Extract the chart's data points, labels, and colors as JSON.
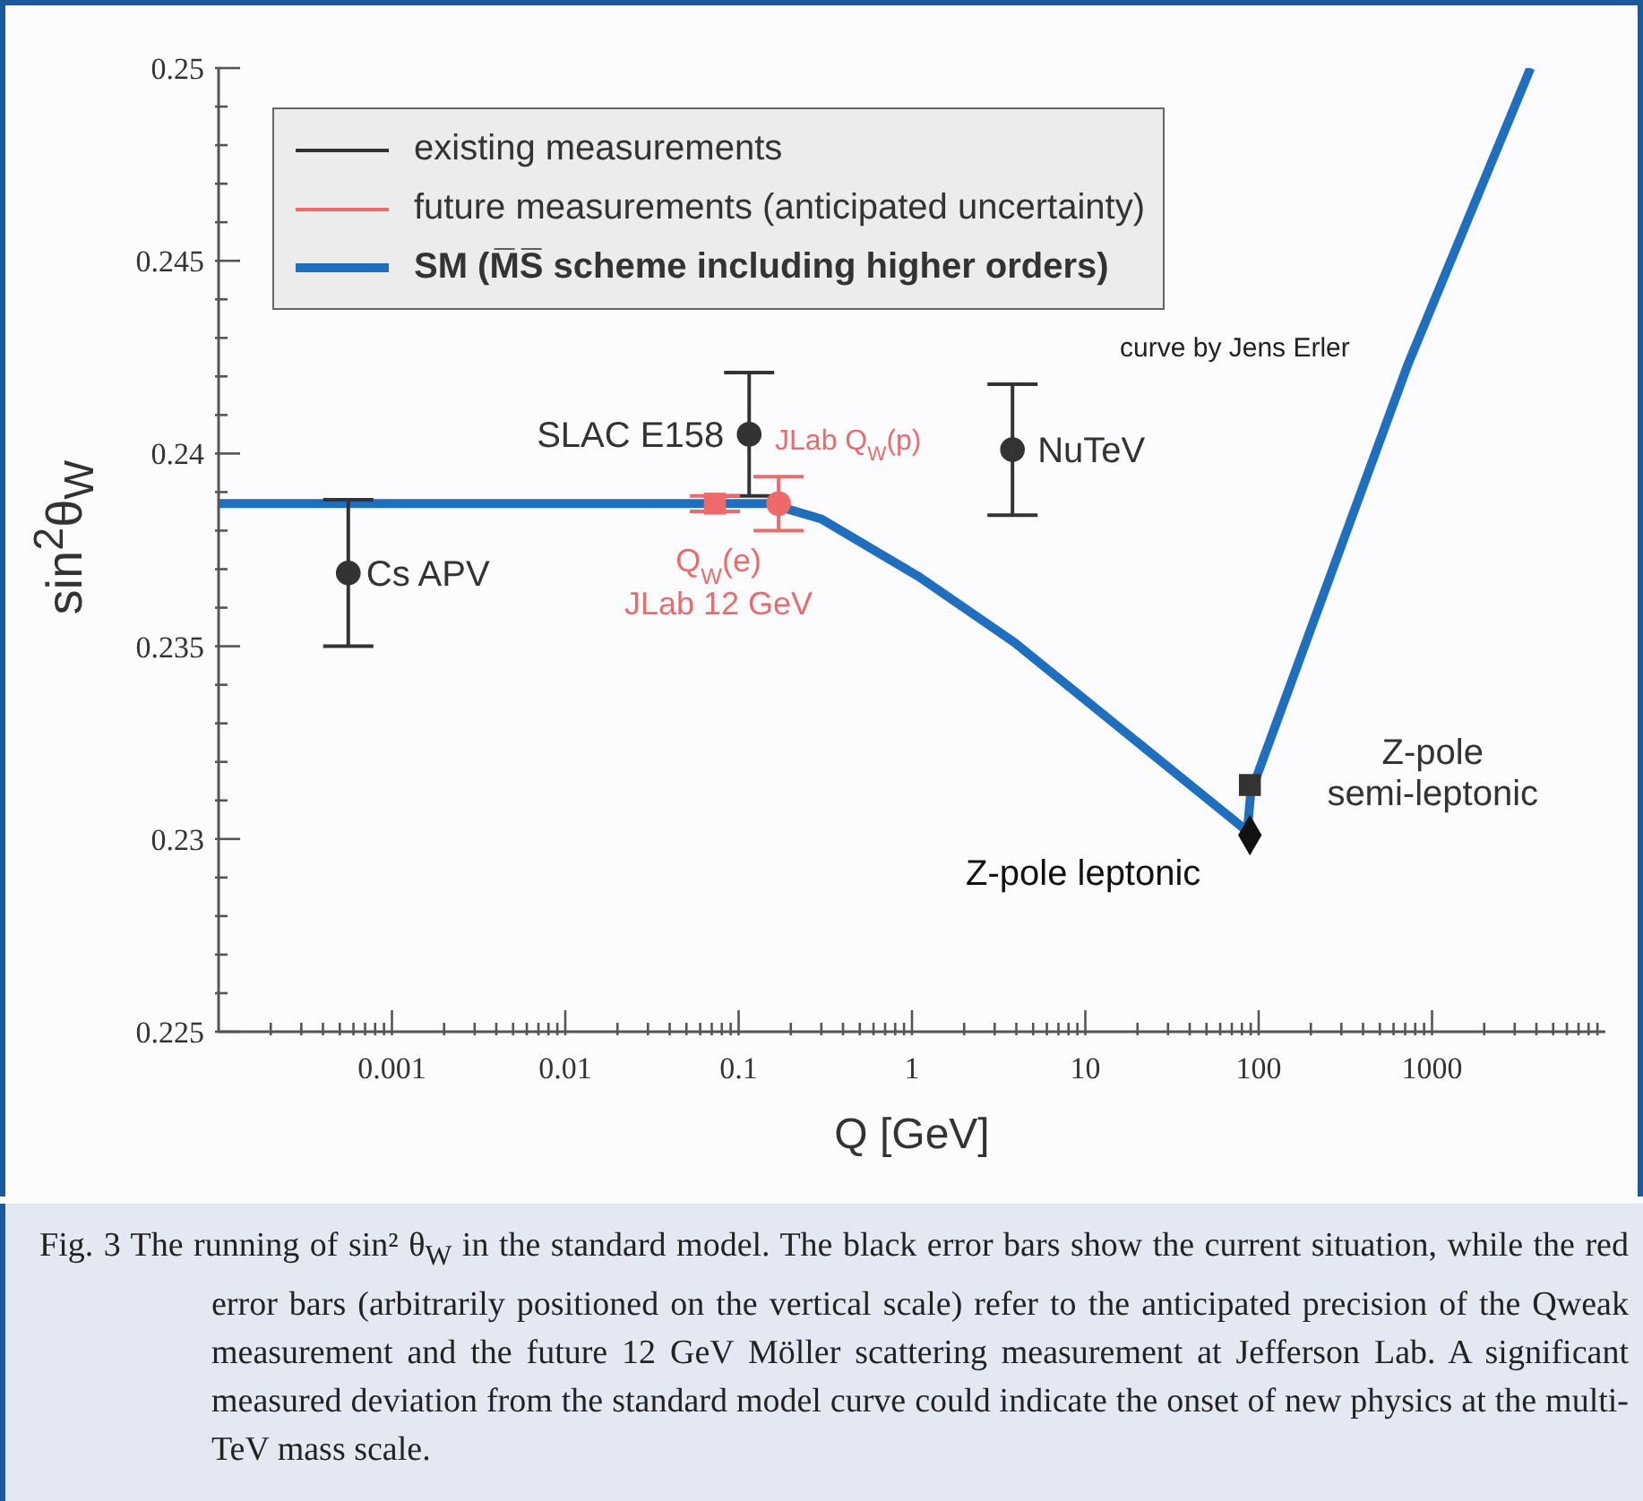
{
  "chart_data": {
    "type": "scatter",
    "xlabel": "Q [GeV]",
    "ylabel": "sin$^{2}$θ$_{W}$",
    "log": "x",
    "xlim": [
      0.0001,
      10000
    ],
    "ylim": [
      0.225,
      0.25
    ],
    "xticks": [
      {
        "value": 0.0002,
        "label": null
      },
      {
        "value": 0.0003,
        "label": null
      },
      {
        "value": 0.0004,
        "label": null
      },
      {
        "value": 0.0005,
        "label": null
      },
      {
        "value": 0.0006,
        "label": null
      },
      {
        "value": 0.0007,
        "label": null
      },
      {
        "value": 0.0008,
        "label": null
      },
      {
        "value": 0.0009,
        "label": null
      },
      0.001,
      {
        "value": 0.002,
        "label": null
      },
      {
        "value": 0.003,
        "label": null
      },
      {
        "value": 0.004,
        "label": null
      },
      {
        "value": 0.005,
        "label": null
      },
      {
        "value": 0.006,
        "label": null
      },
      {
        "value": 0.007,
        "label": null
      },
      {
        "value": 0.008,
        "label": null
      },
      {
        "value": 0.009,
        "label": null
      },
      0.01,
      {
        "value": 0.02,
        "label": null
      },
      {
        "value": 0.03,
        "label": null
      },
      {
        "value": 0.04,
        "label": null
      },
      {
        "value": 0.05,
        "label": null
      },
      {
        "value": 0.06,
        "label": null
      },
      {
        "value": 0.07,
        "label": null
      },
      {
        "value": 0.08,
        "label": null
      },
      {
        "value": 0.09,
        "label": null
      },
      0.1,
      {
        "value": 0.2,
        "label": null
      },
      {
        "value": 0.3,
        "label": null
      },
      {
        "value": 0.4,
        "label": null
      },
      {
        "value": 0.5,
        "label": null
      },
      {
        "value": 0.6,
        "label": null
      },
      {
        "value": 0.7,
        "label": null
      },
      {
        "value": 0.8,
        "label": null
      },
      {
        "value": 0.9,
        "label": null
      },
      1,
      {
        "value": 2,
        "label": null
      },
      {
        "value": 3,
        "label": null
      },
      {
        "value": 4,
        "label": null
      },
      {
        "value": 5,
        "label": null
      },
      {
        "value": 6,
        "label": null
      },
      {
        "value": 7,
        "label": null
      },
      {
        "value": 8,
        "label": null
      },
      {
        "value": 9,
        "label": null
      },
      10,
      {
        "value": 20,
        "label": null
      },
      {
        "value": 30,
        "label": null
      },
      {
        "value": 40,
        "label": null
      },
      {
        "value": 50,
        "label": null
      },
      {
        "value": 60,
        "label": null
      },
      {
        "value": 70,
        "label": null
      },
      {
        "value": 80,
        "label": null
      },
      {
        "value": 90,
        "label": null
      },
      100,
      {
        "value": 200,
        "label": null
      },
      {
        "value": 300,
        "label": null
      },
      {
        "value": 400,
        "label": null
      },
      {
        "value": 500,
        "label": null
      },
      {
        "value": 600,
        "label": null
      },
      {
        "value": 700,
        "label": null
      },
      {
        "value": 800,
        "label": null
      },
      {
        "value": 900,
        "label": null
      },
      1000,
      {
        "value": 2000,
        "label": null
      },
      {
        "value": 3000,
        "label": null
      },
      {
        "value": 4000,
        "label": null
      },
      {
        "value": 5000,
        "label": null
      },
      {
        "value": 6000,
        "label": null
      },
      {
        "value": 7000,
        "label": null
      },
      {
        "value": 8000,
        "label": null
      },
      {
        "value": 9000,
        "label": null
      }
    ],
    "yticks": [
      0.225,
      {
        "value": 0.226,
        "label": null
      },
      {
        "value": 0.227,
        "label": null
      },
      {
        "value": 0.228,
        "label": null
      },
      {
        "value": 0.229,
        "label": null
      },
      0.23,
      {
        "value": 0.231,
        "label": null
      },
      {
        "value": 0.232,
        "label": null
      },
      {
        "value": 0.233,
        "label": null
      },
      {
        "value": 0.234,
        "label": null
      },
      0.235,
      {
        "value": 0.236,
        "label": null
      },
      {
        "value": 0.237,
        "label": null
      },
      {
        "value": 0.238,
        "label": null
      },
      {
        "value": 0.239,
        "label": null
      },
      0.24,
      {
        "value": 0.241,
        "label": null
      },
      {
        "value": 0.242,
        "label": null
      },
      {
        "value": 0.243,
        "label": null
      },
      {
        "value": 0.244,
        "label": null
      },
      0.245,
      {
        "value": 0.246,
        "label": null
      },
      {
        "value": 0.247,
        "label": null
      },
      {
        "value": 0.248,
        "label": null
      },
      {
        "value": 0.249,
        "label": null
      },
      0.25
    ],
    "legend": "top left",
    "series": [
      {
        "name": "existing measurements",
        "color": "#333333",
        "marker": "circle",
        "x": [
          0.00056,
          0.115,
          3.8
        ],
        "values": [
          0.2369,
          0.2405,
          0.2401
        ],
        "errors": [
          0.0019,
          0.0016,
          0.0017
        ]
      },
      {
        "name": "future measurements (anticipated uncertainty)",
        "color": "#ee6a6a",
        "marker": "circle",
        "x": [
          0.17
        ],
        "values": [
          0.2387
        ],
        "errors": [
          0.0007
        ]
      },
      {
        "color": "#ee6a6a",
        "marker": "square",
        "x": [
          0.073
        ],
        "values": [
          0.2387
        ],
        "errors": [
          0.0002
        ]
      },
      {
        "name": "SM (M̅S̅ scheme including higher orders)",
        "type": "line",
        "color": "#1f6fc0",
        "marker": "none",
        "x": [
          0.0001,
          0.15,
          0.3,
          1.1,
          3.9,
          86,
          90,
          724,
          3700
        ],
        "values": [
          0.2387,
          0.2387,
          0.2383,
          0.2368,
          0.2351,
          0.2302,
          0.2312,
          0.2423,
          0.25
        ]
      },
      {
        "color": "#333333",
        "marker": "square",
        "x": [
          89
        ],
        "values": [
          0.2314
        ]
      },
      {
        "color": "#111111",
        "marker": "diamond",
        "x": [
          89
        ],
        "values": [
          0.2301
        ]
      }
    ],
    "annotations": [
      {
        "text": "Cs APV",
        "x": 0.00056,
        "y": 0.2369
      },
      {
        "text": "SLAC E158",
        "x": 0.115,
        "y": 0.2405
      },
      {
        "text": "NuTeV",
        "x": 3.8,
        "y": 0.2401
      },
      {
        "text": "JLab Q$_{W}$(p)",
        "x": 0.17,
        "y": 0.2387
      },
      {
        "text": "Q$_{W}$(e)",
        "x": 0.073,
        "y": 0.2387
      },
      {
        "text": "JLab 12 GeV",
        "x": 0.073,
        "y": 0.2387
      },
      {
        "text": "Z-pole semi-leptonic",
        "x": 89,
        "y": 0.2314
      },
      {
        "text": "Z-pole leptonic",
        "x": 89,
        "y": 0.2301
      },
      "curve by Jens Erler",
      "Fig. 3 The running of sin² θ$_{W}$ in the standard model. The black error bars show the current situation, while the red error bars (arbitrarily positioned on the vertical scale) refer to the anticipated precision of the Qweak measurement and the future 12 GeV Möller scattering measurement at Jefferson Lab. A significant measured deviation from the standard model curve could indicate the onset of new physics at the multi-TeV mass scale."
    ]
  }
}
